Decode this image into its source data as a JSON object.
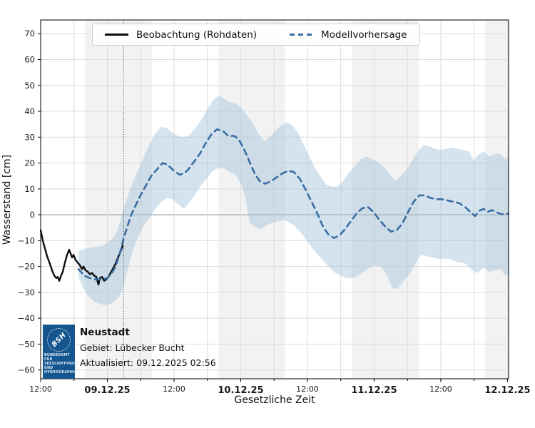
{
  "station": {
    "name": "Neustadt",
    "area_line": "Gebiet: Lübecker Bucht",
    "updated_line": "Aktualisiert: 09.12.2025 02:56"
  },
  "logo": {
    "acronym": "BSH",
    "lines": [
      "BUNDESAMT FÜR",
      "SEESCHIFFFAHRT",
      "UND",
      "HYDROGRAPHIE"
    ]
  },
  "legend": {
    "observation_label": "Beobachtung (Rohdaten)",
    "forecast_label": "Modellvorhersage"
  },
  "colors": {
    "observation": "#0d0d0d",
    "forecast": "#3a6da3",
    "band_fill": "#9fc0d8",
    "night_band": "#f2f2f2",
    "grid": "#dcdcdc",
    "zero_line": "#b0b0b0",
    "spine": "#000000",
    "logo_blue": "#15568e"
  },
  "chart_data": {
    "type": "line",
    "title": "",
    "xlabel": "Gesetzliche Zeit",
    "ylabel": "Wasserstand [cm]",
    "x_unit": "hours after 08.12.25 12:00",
    "xlim": [
      0,
      84.2
    ],
    "ylim": [
      -63.4,
      75.3
    ],
    "yticks": [
      -60,
      -50,
      -40,
      -30,
      -20,
      -10,
      0,
      10,
      20,
      30,
      40,
      50,
      60,
      70
    ],
    "xticks": [
      {
        "t": 0,
        "label": "12:00",
        "bold": false
      },
      {
        "t": 12,
        "label": "09.12.25",
        "bold": true
      },
      {
        "t": 24,
        "label": "12:00",
        "bold": false
      },
      {
        "t": 36,
        "label": "10.12.25",
        "bold": true
      },
      {
        "t": 48,
        "label": "12:00",
        "bold": false
      },
      {
        "t": 60,
        "label": "11.12.25",
        "bold": true
      },
      {
        "t": 72,
        "label": "12:00",
        "bold": false
      },
      {
        "t": 84,
        "label": "12.12.25",
        "bold": true
      }
    ],
    "minor_xtick_step_h": 6,
    "night_spans": [
      [
        8,
        20
      ],
      [
        32,
        44
      ],
      [
        56,
        68
      ],
      [
        80,
        84.2
      ]
    ],
    "forecast_start_t": 14.93,
    "series": [
      {
        "name": "Beobachtung (Rohdaten)",
        "style": "solid",
        "points": [
          [
            0,
            -6
          ],
          [
            0.39,
            -10
          ],
          [
            0.77,
            -13
          ],
          [
            1.16,
            -16
          ],
          [
            1.67,
            -19
          ],
          [
            2.05,
            -21.5
          ],
          [
            2.44,
            -23.5
          ],
          [
            2.82,
            -24.5
          ],
          [
            3.08,
            -24
          ],
          [
            3.34,
            -25.5
          ],
          [
            3.59,
            -24
          ],
          [
            3.98,
            -22
          ],
          [
            4.36,
            -18.5
          ],
          [
            4.75,
            -15.5
          ],
          [
            5.13,
            -13.5
          ],
          [
            5.39,
            -15
          ],
          [
            5.65,
            -16.5
          ],
          [
            5.9,
            -15.5
          ],
          [
            6.29,
            -17.5
          ],
          [
            6.67,
            -18.5
          ],
          [
            7.06,
            -19.5
          ],
          [
            7.44,
            -21
          ],
          [
            7.7,
            -20
          ],
          [
            8.09,
            -21.5
          ],
          [
            8.47,
            -22
          ],
          [
            8.86,
            -23
          ],
          [
            9.24,
            -22.5
          ],
          [
            9.63,
            -23.5
          ],
          [
            10.01,
            -24
          ],
          [
            10.4,
            -27
          ],
          [
            10.65,
            -24.5
          ],
          [
            11.04,
            -24
          ],
          [
            11.42,
            -25.5
          ],
          [
            11.81,
            -25
          ],
          [
            12.19,
            -24
          ],
          [
            12.58,
            -22.5
          ],
          [
            12.96,
            -21
          ],
          [
            13.35,
            -19.5
          ],
          [
            13.73,
            -17.5
          ],
          [
            14.12,
            -15.5
          ],
          [
            14.5,
            -13.5
          ],
          [
            14.76,
            -12
          ]
        ]
      },
      {
        "name": "Modellvorhersage",
        "style": "dashed",
        "points": [
          [
            6.8,
            -21
          ],
          [
            7.83,
            -23.5
          ],
          [
            8.86,
            -24.5
          ],
          [
            9.88,
            -25
          ],
          [
            10.91,
            -25
          ],
          [
            11.94,
            -24.5
          ],
          [
            12.71,
            -23
          ],
          [
            13.48,
            -20
          ],
          [
            14.25,
            -15
          ],
          [
            14.89,
            -9.5
          ],
          [
            15.53,
            -5
          ],
          [
            16.3,
            0
          ],
          [
            17.07,
            3.5
          ],
          [
            17.84,
            7
          ],
          [
            18.87,
            11
          ],
          [
            19.89,
            15
          ],
          [
            20.92,
            17.5
          ],
          [
            21.95,
            20
          ],
          [
            22.72,
            19.5
          ],
          [
            23.49,
            18
          ],
          [
            24.26,
            16.5
          ],
          [
            25.03,
            15.5
          ],
          [
            25.8,
            16
          ],
          [
            26.57,
            17.5
          ],
          [
            27.6,
            20.5
          ],
          [
            28.62,
            23.5
          ],
          [
            29.65,
            27.5
          ],
          [
            30.68,
            31
          ],
          [
            31.7,
            33
          ],
          [
            32.73,
            32.5
          ],
          [
            33.76,
            30.5
          ],
          [
            34.78,
            30.5
          ],
          [
            35.55,
            29.5
          ],
          [
            36.32,
            26.5
          ],
          [
            37.09,
            23
          ],
          [
            37.86,
            19
          ],
          [
            38.63,
            15.5
          ],
          [
            39.4,
            13
          ],
          [
            40.43,
            12
          ],
          [
            41.45,
            13
          ],
          [
            42.48,
            14.5
          ],
          [
            43.51,
            16
          ],
          [
            44.53,
            17
          ],
          [
            45.56,
            16.5
          ],
          [
            46.59,
            14
          ],
          [
            47.61,
            10
          ],
          [
            48.64,
            5.5
          ],
          [
            49.67,
            1
          ],
          [
            50.69,
            -4
          ],
          [
            51.72,
            -7.5
          ],
          [
            52.75,
            -9
          ],
          [
            53.77,
            -8
          ],
          [
            54.8,
            -5.5
          ],
          [
            55.82,
            -2.5
          ],
          [
            56.85,
            0.5
          ],
          [
            57.88,
            2.5
          ],
          [
            58.9,
            3
          ],
          [
            59.93,
            1
          ],
          [
            60.96,
            -2
          ],
          [
            61.98,
            -4.5
          ],
          [
            63.01,
            -6.5
          ],
          [
            64.04,
            -6
          ],
          [
            65.06,
            -3.5
          ],
          [
            66.09,
            1
          ],
          [
            67.11,
            5
          ],
          [
            68.14,
            7.5
          ],
          [
            69.17,
            7.5
          ],
          [
            70.19,
            6.5
          ],
          [
            71.22,
            6
          ],
          [
            72.25,
            6
          ],
          [
            73.27,
            5.5
          ],
          [
            74.3,
            5
          ],
          [
            75.33,
            4.5
          ],
          [
            76.35,
            3
          ],
          [
            77.38,
            1
          ],
          [
            78.15,
            -0.5
          ],
          [
            78.92,
            1.5
          ],
          [
            79.69,
            2.3
          ],
          [
            80.46,
            1.2
          ],
          [
            81.23,
            1.8
          ],
          [
            82,
            1
          ],
          [
            82.77,
            0.3
          ],
          [
            83.54,
            0.2
          ],
          [
            84.18,
            0.5
          ]
        ]
      }
    ],
    "uncertainty_band": {
      "upper": [
        [
          6.8,
          -14
        ],
        [
          8.09,
          -13
        ],
        [
          9.63,
          -12.5
        ],
        [
          11.17,
          -12
        ],
        [
          12.19,
          -10.5
        ],
        [
          13.22,
          -8.5
        ],
        [
          13.99,
          -5
        ],
        [
          14.89,
          2
        ],
        [
          15.79,
          8
        ],
        [
          16.69,
          13
        ],
        [
          17.58,
          17.5
        ],
        [
          18.61,
          22.5
        ],
        [
          19.64,
          27.5
        ],
        [
          20.66,
          31.5
        ],
        [
          21.69,
          34
        ],
        [
          22.72,
          33.5
        ],
        [
          23.74,
          31.5
        ],
        [
          24.77,
          30.5
        ],
        [
          25.8,
          30
        ],
        [
          26.82,
          31
        ],
        [
          27.85,
          33.5
        ],
        [
          28.88,
          36.5
        ],
        [
          29.9,
          40.5
        ],
        [
          30.93,
          44
        ],
        [
          31.96,
          46
        ],
        [
          32.98,
          45
        ],
        [
          34.01,
          43.5
        ],
        [
          35.04,
          43
        ],
        [
          36.06,
          41.5
        ],
        [
          37.09,
          38.5
        ],
        [
          38.12,
          35.5
        ],
        [
          39.14,
          31.5
        ],
        [
          40.17,
          28.5
        ],
        [
          41.2,
          30
        ],
        [
          42.22,
          32.5
        ],
        [
          43.25,
          34.5
        ],
        [
          44.28,
          35.8
        ],
        [
          45.3,
          34.5
        ],
        [
          46.33,
          31.5
        ],
        [
          47.36,
          27
        ],
        [
          48.38,
          22.5
        ],
        [
          49.41,
          18
        ],
        [
          50.44,
          14.5
        ],
        [
          51.46,
          11.5
        ],
        [
          52.49,
          10.8
        ],
        [
          53.52,
          11
        ],
        [
          54.54,
          13.5
        ],
        [
          55.57,
          16.5
        ],
        [
          56.6,
          19
        ],
        [
          57.62,
          21.5
        ],
        [
          58.65,
          22.5
        ],
        [
          59.67,
          21.5
        ],
        [
          60.7,
          20.5
        ],
        [
          61.73,
          18.5
        ],
        [
          62.75,
          16
        ],
        [
          63.78,
          13
        ],
        [
          64.81,
          15
        ],
        [
          65.83,
          17.5
        ],
        [
          66.86,
          21
        ],
        [
          67.88,
          24.5
        ],
        [
          68.91,
          27
        ],
        [
          69.94,
          26.5
        ],
        [
          70.96,
          25.5
        ],
        [
          71.99,
          25
        ],
        [
          73.02,
          25.5
        ],
        [
          74.04,
          26
        ],
        [
          75.07,
          25.5
        ],
        [
          76.1,
          25
        ],
        [
          77.12,
          24.5
        ],
        [
          77.89,
          21
        ],
        [
          78.66,
          23
        ],
        [
          79.69,
          24.5
        ],
        [
          80.72,
          22.5
        ],
        [
          81.74,
          23.5
        ],
        [
          82.77,
          23.5
        ],
        [
          83.54,
          21.5
        ],
        [
          84.18,
          22.5
        ]
      ],
      "lower": [
        [
          6.8,
          -24
        ],
        [
          7.57,
          -28
        ],
        [
          8.6,
          -31.5
        ],
        [
          9.63,
          -33.5
        ],
        [
          10.65,
          -34.5
        ],
        [
          11.94,
          -35
        ],
        [
          12.96,
          -34
        ],
        [
          13.99,
          -32
        ],
        [
          14.76,
          -29
        ],
        [
          15.53,
          -22
        ],
        [
          16.3,
          -16
        ],
        [
          17.07,
          -11
        ],
        [
          17.84,
          -7
        ],
        [
          18.61,
          -4
        ],
        [
          19.64,
          -1
        ],
        [
          20.66,
          2.5
        ],
        [
          21.69,
          5
        ],
        [
          22.72,
          6.5
        ],
        [
          23.74,
          6
        ],
        [
          24.77,
          4
        ],
        [
          25.8,
          2.2
        ],
        [
          26.82,
          5
        ],
        [
          27.85,
          8
        ],
        [
          28.88,
          11.5
        ],
        [
          29.9,
          14
        ],
        [
          30.93,
          17
        ],
        [
          31.96,
          18
        ],
        [
          32.98,
          18
        ],
        [
          34.01,
          16.5
        ],
        [
          35.04,
          15.5
        ],
        [
          36.06,
          12
        ],
        [
          36.83,
          7
        ],
        [
          37.6,
          -3
        ],
        [
          38.63,
          -5
        ],
        [
          39.66,
          -5.5
        ],
        [
          40.68,
          -4
        ],
        [
          41.71,
          -3
        ],
        [
          42.74,
          -2.5
        ],
        [
          43.76,
          -2
        ],
        [
          44.79,
          -3
        ],
        [
          45.82,
          -4.5
        ],
        [
          46.84,
          -7
        ],
        [
          47.87,
          -10
        ],
        [
          48.9,
          -13
        ],
        [
          49.92,
          -15.5
        ],
        [
          50.95,
          -18
        ],
        [
          51.97,
          -20.5
        ],
        [
          53,
          -22.5
        ],
        [
          54.03,
          -23.5
        ],
        [
          55.05,
          -24.5
        ],
        [
          56.08,
          -24.5
        ],
        [
          57.11,
          -23.5
        ],
        [
          58.13,
          -22
        ],
        [
          59.16,
          -20.5
        ],
        [
          60.18,
          -19.5
        ],
        [
          61.21,
          -20
        ],
        [
          62.24,
          -23
        ],
        [
          63.26,
          -28.5
        ],
        [
          64.29,
          -28.5
        ],
        [
          65.31,
          -25.5
        ],
        [
          66.34,
          -23
        ],
        [
          67.37,
          -19
        ],
        [
          68.39,
          -15.5
        ],
        [
          69.42,
          -16
        ],
        [
          70.45,
          -16.5
        ],
        [
          71.47,
          -17
        ],
        [
          72.5,
          -17
        ],
        [
          73.52,
          -17
        ],
        [
          74.55,
          -18
        ],
        [
          75.58,
          -18.5
        ],
        [
          76.6,
          -19
        ],
        [
          77.63,
          -21.5
        ],
        [
          78.66,
          -22.5
        ],
        [
          79.69,
          -20.5
        ],
        [
          80.72,
          -22
        ],
        [
          81.74,
          -21.5
        ],
        [
          82.77,
          -21
        ],
        [
          83.54,
          -23.5
        ],
        [
          84.18,
          -23
        ]
      ]
    }
  }
}
